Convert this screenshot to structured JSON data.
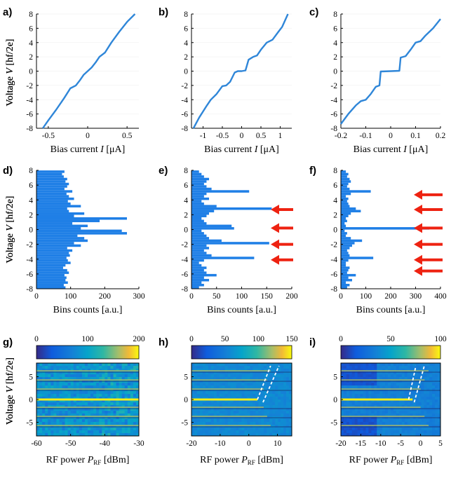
{
  "colors": {
    "trace": "#2f86d8",
    "bar": "#1f7fe6",
    "arrow": "#ee2211",
    "axis": "#000000",
    "dash": "#ffffff"
  },
  "chart_data": [
    {
      "id": "a",
      "panel_label": "a)",
      "type": "line",
      "xlabel": "Bias current I [μA]",
      "ylabel": "Voltage V [hf/2e]",
      "xlim": [
        -0.65,
        0.65
      ],
      "ylim": [
        -8,
        8
      ],
      "xticks": [
        -0.5,
        0,
        0.5
      ],
      "xtick_labels": [
        "-0.5",
        "0",
        "0.5"
      ],
      "yticks": [
        -8,
        -6,
        -4,
        -2,
        0,
        2,
        4,
        6,
        8
      ],
      "ytick_labels": [
        "-8",
        "-6",
        "-4",
        "-2",
        "0",
        "2",
        "4",
        "6",
        "8"
      ],
      "x": [
        -0.57,
        -0.5,
        -0.4,
        -0.3,
        -0.22,
        -0.15,
        -0.1,
        -0.05,
        0,
        0.05,
        0.1,
        0.15,
        0.22,
        0.3,
        0.4,
        0.5,
        0.6
      ],
      "y": [
        -8,
        -6.9,
        -5.4,
        -3.8,
        -2.4,
        -2,
        -1.3,
        -0.5,
        0,
        0.5,
        1.2,
        2,
        2.6,
        4,
        5.5,
        6.9,
        8
      ]
    },
    {
      "id": "b",
      "panel_label": "b)",
      "type": "line",
      "xlabel": "Bias current I [μA]",
      "ylabel": "Voltage V [hf/2e]",
      "xlim": [
        -1.3,
        1.3
      ],
      "ylim": [
        -8,
        8
      ],
      "xticks": [
        -1,
        -0.5,
        0,
        0.5,
        1
      ],
      "xtick_labels": [
        "-1",
        "-0.5",
        "0",
        "0.5",
        "1"
      ],
      "yticks": [
        -8,
        -6,
        -4,
        -2,
        0,
        2,
        4,
        6,
        8
      ],
      "ytick_labels": [
        "-8",
        "-6",
        "-4",
        "-2",
        "0",
        "2",
        "4",
        "6",
        "8"
      ],
      "x": [
        -1.25,
        -1.1,
        -0.9,
        -0.8,
        -0.65,
        -0.5,
        -0.4,
        -0.3,
        -0.18,
        -0.1,
        0,
        0.1,
        0.18,
        0.3,
        0.4,
        0.5,
        0.65,
        0.8,
        0.95,
        1.05,
        1.2
      ],
      "y": [
        -8,
        -6.5,
        -4.8,
        -4,
        -3.2,
        -2.1,
        -2,
        -1.5,
        -0.2,
        0,
        0,
        0.1,
        1.6,
        2,
        2.2,
        3,
        4,
        4.4,
        5.5,
        6.2,
        8
      ]
    },
    {
      "id": "c",
      "panel_label": "c)",
      "type": "line",
      "xlabel": "Bias current I [μA]",
      "ylabel": "Voltage V [hf/2e]",
      "xlim": [
        -0.2,
        0.2
      ],
      "ylim": [
        -8,
        8
      ],
      "xticks": [
        -0.2,
        -0.1,
        0,
        0.1,
        0.2
      ],
      "xtick_labels": [
        "-0.2",
        "-0.1",
        "0",
        "0.1",
        "0.2"
      ],
      "yticks": [
        -8,
        -6,
        -4,
        -2,
        0,
        2,
        4,
        6,
        8
      ],
      "ytick_labels": [
        "-8",
        "-6",
        "-4",
        "-2",
        "0",
        "2",
        "4",
        "6",
        "8"
      ],
      "x": [
        -0.2,
        -0.17,
        -0.14,
        -0.12,
        -0.1,
        -0.08,
        -0.06,
        -0.045,
        -0.04,
        0,
        0.035,
        0.04,
        0.06,
        0.08,
        0.1,
        0.12,
        0.14,
        0.17,
        0.2
      ],
      "y": [
        -7.4,
        -6,
        -4.8,
        -4.2,
        -4,
        -3.2,
        -2.2,
        -2,
        -0.05,
        0,
        0.05,
        1.9,
        2.1,
        3,
        4,
        4.2,
        5,
        6,
        7.3
      ]
    },
    {
      "id": "d",
      "panel_label": "d)",
      "type": "barh",
      "xlabel": "Bins counts [a.u.]",
      "ylabel": "Voltage V [hf/2e]",
      "xlim": [
        0,
        300
      ],
      "ylim": [
        -8,
        8
      ],
      "xticks": [
        0,
        100,
        200,
        300
      ],
      "xtick_labels": [
        "0",
        "100",
        "200",
        "300"
      ],
      "yticks": [
        -8,
        -6,
        -4,
        -2,
        0,
        2,
        4,
        6,
        8
      ],
      "ytick_labels": [
        "-8",
        "-6",
        "-4",
        "-2",
        "0",
        "2",
        "4",
        "6",
        "8"
      ],
      "y_start": -8,
      "bin_width": 0.333,
      "values": [
        85,
        80,
        92,
        85,
        88,
        82,
        95,
        90,
        78,
        85,
        100,
        92,
        88,
        98,
        95,
        105,
        90,
        130,
        110,
        150,
        140,
        120,
        265,
        250,
        130,
        150,
        105,
        185,
        265,
        110,
        140,
        95,
        90,
        130,
        100,
        92,
        110,
        95,
        88,
        105,
        82,
        90,
        95,
        85,
        90,
        80,
        75,
        82
      ]
    },
    {
      "id": "e",
      "panel_label": "e)",
      "type": "barh",
      "xlabel": "Bins counts [a.u.]",
      "ylabel": "Voltage V [hf/2e]",
      "xlim": [
        0,
        200
      ],
      "ylim": [
        -8,
        8
      ],
      "xticks": [
        0,
        50,
        100,
        150,
        200
      ],
      "xtick_labels": [
        "0",
        "50",
        "100",
        "150",
        "200"
      ],
      "yticks": [
        -8,
        -6,
        -4,
        -2,
        0,
        2,
        4,
        6,
        8
      ],
      "ytick_labels": [
        "-8",
        "-6",
        "-4",
        "-2",
        "0",
        "2",
        "4",
        "6",
        "8"
      ],
      "y_start": -8,
      "bin_width": 0.333,
      "values": [
        15,
        25,
        20,
        35,
        25,
        50,
        30,
        25,
        30,
        20,
        15,
        25,
        125,
        40,
        30,
        25,
        35,
        30,
        155,
        60,
        35,
        30,
        25,
        20,
        85,
        80,
        30,
        25,
        20,
        30,
        35,
        45,
        160,
        50,
        25,
        20,
        35,
        25,
        30,
        115,
        40,
        30,
        25,
        30,
        35,
        25,
        20,
        15
      ]
    },
    {
      "id": "f",
      "panel_label": "f)",
      "type": "barh",
      "xlabel": "Bins counts [a.u.]",
      "ylabel": "Voltage V [hf/2e]",
      "xlim": [
        0,
        400
      ],
      "ylim": [
        -8,
        8
      ],
      "xticks": [
        0,
        100,
        200,
        300,
        400
      ],
      "xtick_labels": [
        "0",
        "100",
        "200",
        "300",
        "400"
      ],
      "yticks": [
        -8,
        -6,
        -4,
        -2,
        0,
        2,
        4,
        6,
        8
      ],
      "ytick_labels": [
        "-8",
        "-6",
        "-4",
        "-2",
        "0",
        "2",
        "4",
        "6",
        "8"
      ],
      "y_start": -8,
      "bin_width": 0.333,
      "values": [
        25,
        35,
        20,
        45,
        30,
        60,
        25,
        30,
        35,
        20,
        20,
        30,
        130,
        35,
        30,
        25,
        35,
        45,
        55,
        85,
        40,
        20,
        25,
        15,
        355,
        20,
        15,
        25,
        20,
        30,
        40,
        80,
        60,
        35,
        30,
        25,
        30,
        20,
        40,
        120,
        35,
        25,
        30,
        40,
        35,
        25,
        30,
        20
      ],
      "arrows_at": [
        4.7,
        2.7,
        0.2,
        -2,
        -4.1,
        -5.6
      ]
    },
    {
      "id": "g",
      "panel_label": "g)",
      "type": "heatmap",
      "xlabel": "RF power P_RF [dBm]",
      "ylabel": "Voltage V [hf/2e]",
      "xlim": [
        -60,
        -30
      ],
      "ylim": [
        -8,
        8
      ],
      "xticks": [
        -60,
        -50,
        -40,
        -30
      ],
      "xtick_labels": [
        "-60",
        "-50",
        "-40",
        "-30"
      ],
      "yticks": [
        -5,
        0,
        5
      ],
      "ytick_labels": [
        "-5",
        "0",
        "5"
      ],
      "colorbar": {
        "min": 0,
        "max": 200,
        "ticks": [
          0,
          100,
          200
        ],
        "tick_labels": [
          "0",
          "100",
          "200"
        ]
      }
    },
    {
      "id": "h",
      "panel_label": "h)",
      "type": "heatmap",
      "xlabel": "RF power P_RF [dBm]",
      "ylabel": "Voltage V [hf/2e]",
      "xlim": [
        -20,
        15
      ],
      "ylim": [
        -8,
        8
      ],
      "xticks": [
        -20,
        -10,
        0,
        10
      ],
      "xtick_labels": [
        "-20",
        "-10",
        "0",
        "10"
      ],
      "yticks": [
        -5,
        0,
        5
      ],
      "ytick_labels": [
        "-5",
        "0",
        "5"
      ],
      "colorbar": {
        "min": 0,
        "max": 150,
        "ticks": [
          0,
          50,
          100,
          150
        ],
        "tick_labels": [
          "0",
          "50",
          "100",
          "150"
        ]
      }
    },
    {
      "id": "i",
      "panel_label": "i)",
      "type": "heatmap",
      "xlabel": "RF power P_RF [dBm]",
      "ylabel": "Voltage V [hf/2e]",
      "xlim": [
        -20,
        5
      ],
      "ylim": [
        -8,
        8
      ],
      "xticks": [
        -20,
        -15,
        -10,
        -5,
        0,
        5
      ],
      "xtick_labels": [
        "-20",
        "-15",
        "-10",
        "-5",
        "0",
        "5"
      ],
      "yticks": [
        -5,
        0,
        5
      ],
      "ytick_labels": [
        "-5",
        "0",
        "5"
      ],
      "colorbar": {
        "min": 0,
        "max": 100,
        "ticks": [
          0,
          50,
          100
        ],
        "tick_labels": [
          "0",
          "50",
          "100"
        ]
      }
    }
  ],
  "panels": {
    "a": {
      "label": "a)",
      "xlabel_main": "Bias current ",
      "xlabel_var": "I",
      "xlabel_unit": " [μA]",
      "ylabel_main": "Voltage ",
      "ylabel_var": "V",
      "ylabel_unit": " [hf/2e]"
    },
    "b": {
      "label": "b)",
      "xlabel_main": "Bias current ",
      "xlabel_var": "I",
      "xlabel_unit": " [μA]",
      "ylabel_main": "Voltage ",
      "ylabel_var": "V",
      "ylabel_unit": " [hf/2e]"
    },
    "c": {
      "label": "c)",
      "xlabel_main": "Bias current ",
      "xlabel_var": "I",
      "xlabel_unit": " [μA]",
      "ylabel_main": "Voltage ",
      "ylabel_var": "V",
      "ylabel_unit": " [hf/2e]"
    },
    "d": {
      "label": "d)",
      "xlabel_main": "Bins counts [a.u.]",
      "ylabel_main": "Voltage ",
      "ylabel_var": "V",
      "ylabel_unit": " [hf/2e]"
    },
    "e": {
      "label": "e)",
      "xlabel_main": "Bins counts [a.u.]",
      "ylabel_main": "Voltage ",
      "ylabel_var": "V",
      "ylabel_unit": " [hf/2e]"
    },
    "f": {
      "label": "f)",
      "xlabel_main": "Bins counts [a.u.]",
      "ylabel_main": "Voltage ",
      "ylabel_var": "V",
      "ylabel_unit": " [hf/2e]"
    },
    "g": {
      "label": "g)",
      "xlabel_main": "RF power ",
      "xlabel_var": "P",
      "xlabel_sub": "RF",
      "xlabel_unit": " [dBm]",
      "ylabel_main": "Voltage ",
      "ylabel_var": "V",
      "ylabel_unit": " [hf/2e]"
    },
    "h": {
      "label": "h)",
      "xlabel_main": "RF power ",
      "xlabel_var": "P",
      "xlabel_sub": "RF",
      "xlabel_unit": " [dBm]",
      "ylabel_main": "Voltage ",
      "ylabel_var": "V",
      "ylabel_unit": " [hf/2e]"
    },
    "i": {
      "label": "i)",
      "xlabel_main": "RF power ",
      "xlabel_var": "P",
      "xlabel_sub": "RF",
      "xlabel_unit": " [dBm]",
      "ylabel_main": "Voltage ",
      "ylabel_var": "V",
      "ylabel_unit": " [hf/2e]"
    }
  }
}
